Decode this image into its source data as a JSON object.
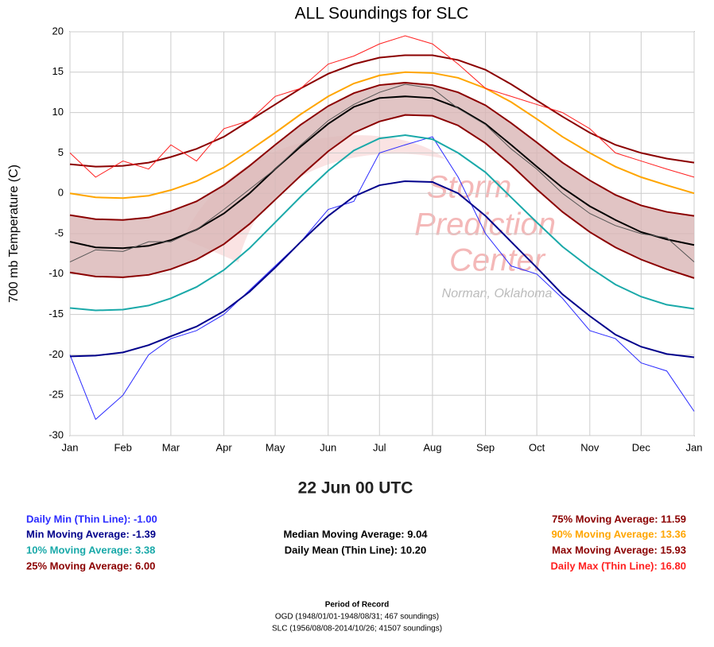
{
  "chart_data": {
    "type": "line",
    "title": "ALL Soundings for SLC",
    "y_label": "700 mb Temperature (C)",
    "readout_title": "22 Jun 00 UTC",
    "watermark": [
      "Storm",
      "Prediction",
      "Center",
      "Norman, Oklahoma"
    ],
    "footer": [
      "Period of Record",
      "OGD (1948/01/01-1948/08/31; 467 soundings)",
      "SLC (1956/08/08-2014/10/26; 41507 soundings)"
    ],
    "grid": true,
    "xlim": [
      0,
      365
    ],
    "ylim": [
      -30,
      20
    ],
    "xticks": [
      {
        "value": 0,
        "label": "Jan"
      },
      {
        "value": 31,
        "label": "Feb"
      },
      {
        "value": 59,
        "label": "Mar"
      },
      {
        "value": 90,
        "label": "Apr"
      },
      {
        "value": 120,
        "label": "May"
      },
      {
        "value": 151,
        "label": "Jun"
      },
      {
        "value": 181,
        "label": "Jul"
      },
      {
        "value": 212,
        "label": "Aug"
      },
      {
        "value": 243,
        "label": "Sep"
      },
      {
        "value": 273,
        "label": "Oct"
      },
      {
        "value": 304,
        "label": "Nov"
      },
      {
        "value": 334,
        "label": "Dec"
      },
      {
        "value": 365,
        "label": "Jan"
      }
    ],
    "yticks": [
      -30,
      -25,
      -20,
      -15,
      -10,
      -5,
      0,
      5,
      10,
      15,
      20
    ],
    "x": [
      0,
      15,
      31,
      46,
      59,
      74,
      90,
      105,
      120,
      135,
      151,
      166,
      181,
      196,
      212,
      227,
      243,
      258,
      273,
      288,
      304,
      319,
      334,
      349,
      365
    ],
    "band": {
      "between": [
        "25% Moving Average: 6.00",
        "75% Moving Average: 11.59"
      ],
      "color": "#d9b5b5"
    },
    "series": [
      {
        "name": "Daily Min (Thin Line): -1.00",
        "color": "#2b2bff",
        "width": 1,
        "values": [
          -20,
          -28,
          -25,
          -20,
          -18,
          -17,
          -15,
          -12,
          -9,
          -6,
          -2,
          -1,
          5,
          6,
          7,
          2,
          -5,
          -9,
          -10,
          -13,
          -17,
          -18,
          -21,
          -22,
          -27
        ]
      },
      {
        "name": "Min Moving Average: -1.39",
        "color": "#00008b",
        "width": 2,
        "values": [
          -20.2,
          -20.1,
          -19.7,
          -18.8,
          -17.7,
          -16.5,
          -14.6,
          -12.2,
          -9.2,
          -6,
          -2.8,
          -0.4,
          1,
          1.5,
          1.4,
          0,
          -2.8,
          -6,
          -9.2,
          -12.5,
          -15.2,
          -17.5,
          -19,
          -19.9,
          -20.3
        ]
      },
      {
        "name": "10% Moving Average: 3.38",
        "color": "#1aa9a9",
        "width": 2,
        "values": [
          -14.2,
          -14.5,
          -14.4,
          -13.9,
          -13,
          -11.6,
          -9.5,
          -6.8,
          -3.6,
          -0.4,
          2.8,
          5.3,
          6.8,
          7.2,
          6.7,
          5,
          2.6,
          -0.5,
          -3.6,
          -6.6,
          -9.2,
          -11.3,
          -12.8,
          -13.8,
          -14.3
        ]
      },
      {
        "name": "25% Moving Average: 6.00",
        "color": "#8b0000",
        "width": 2,
        "values": [
          -9.8,
          -10.3,
          -10.4,
          -10.1,
          -9.4,
          -8.2,
          -6.3,
          -3.8,
          -0.8,
          2.2,
          5.2,
          7.5,
          8.9,
          9.7,
          9.6,
          8.4,
          6.2,
          3.5,
          0.5,
          -2.3,
          -4.8,
          -6.7,
          -8.2,
          -9.4,
          -10.5
        ]
      },
      {
        "name": "Median Moving Average: 9.04",
        "color": "#000000",
        "width": 2,
        "values": [
          -6,
          -6.7,
          -6.8,
          -6.5,
          -5.8,
          -4.5,
          -2.5,
          0,
          3,
          5.8,
          8.6,
          10.7,
          11.8,
          12,
          11.8,
          10.6,
          8.6,
          6,
          3.3,
          0.7,
          -1.6,
          -3.3,
          -4.8,
          -5.7,
          -6.4
        ]
      },
      {
        "name": "Daily Mean (Thin Line): 10.20",
        "color": "#555555",
        "width": 1,
        "values": [
          -8.5,
          -7,
          -7.2,
          -6,
          -6,
          -4.5,
          -2,
          0.5,
          3,
          6,
          9,
          11,
          12.5,
          13.5,
          13,
          10.5,
          8.5,
          5.5,
          3,
          0,
          -2.5,
          -4,
          -5,
          -5.5,
          -8.5
        ]
      },
      {
        "name": "75% Moving Average: 11.59",
        "color": "#8b0000",
        "width": 2,
        "values": [
          -2.7,
          -3.2,
          -3.3,
          -3,
          -2.2,
          -1,
          1,
          3.4,
          6,
          8.5,
          10.8,
          12.4,
          13.4,
          13.7,
          13.4,
          12.5,
          10.9,
          8.7,
          6.3,
          3.8,
          1.6,
          -0.2,
          -1.5,
          -2.3,
          -2.8
        ]
      },
      {
        "name": "90% Moving Average: 13.36",
        "color": "#ffa500",
        "width": 2,
        "values": [
          0,
          -0.5,
          -0.6,
          -0.3,
          0.4,
          1.5,
          3.2,
          5.3,
          7.5,
          9.8,
          12,
          13.6,
          14.6,
          15,
          14.9,
          14.3,
          13,
          11.3,
          9.2,
          7,
          5,
          3.3,
          2,
          1,
          0
        ]
      },
      {
        "name": "Max Moving Average: 15.93",
        "color": "#8b0000",
        "width": 2,
        "values": [
          3.6,
          3.3,
          3.4,
          3.8,
          4.5,
          5.5,
          7,
          9,
          11,
          13,
          14.8,
          16,
          16.8,
          17.1,
          17.1,
          16.5,
          15.3,
          13.5,
          11.5,
          9.5,
          7.5,
          6,
          5,
          4.3,
          3.8
        ]
      },
      {
        "name": "Daily Max (Thin Line): 16.80",
        "color": "#ff2020",
        "width": 1,
        "values": [
          5,
          2,
          4,
          3,
          6,
          4,
          8,
          9,
          12,
          13,
          16,
          17,
          18.5,
          19.5,
          18.5,
          16,
          13,
          12,
          11,
          10,
          8,
          5,
          4,
          3,
          2
        ]
      }
    ]
  }
}
